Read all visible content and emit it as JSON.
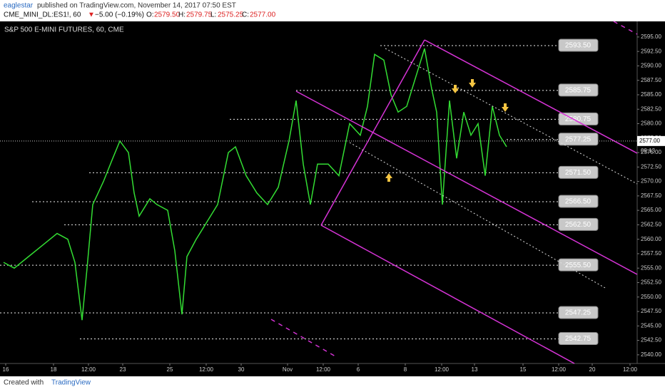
{
  "header": {
    "user": "eaglestar",
    "published": "published on TradingView.com, November 14, 2017 07:50 EST",
    "symbol": "CME_MINI_DL:ES1!, 60",
    "arrow": "▼",
    "change": "−5.00 (−0.19%)",
    "o_label": "O:",
    "open": "2579.50",
    "h_label": "H:",
    "high": "2579.75",
    "l_label": "L:",
    "low": "2575.25",
    "c_label": "C:",
    "close": "2577.00"
  },
  "chart_data": {
    "type": "line",
    "title": "S&P 500 E-MINI FUTURES, 60, CME",
    "series": [
      {
        "name": "ES1!",
        "color": "#33dd33",
        "x": [
          5,
          20,
          40,
          60,
          80,
          95,
          105,
          115,
          122,
          130,
          145,
          158,
          168,
          180,
          188,
          195,
          210,
          220,
          235,
          245,
          255,
          262,
          275,
          290,
          305,
          320,
          330,
          345,
          360,
          375,
          390,
          405,
          415,
          425,
          435,
          445,
          460,
          475,
          490,
          505,
          515,
          525,
          538,
          548,
          558,
          570,
          585,
          595,
          605,
          612,
          620,
          630,
          640,
          650,
          660,
          670,
          680,
          690,
          700,
          710
        ],
        "values": [
          2556,
          2555,
          2557,
          2559,
          2561,
          2560,
          2556,
          2546,
          2555,
          2566,
          2570,
          2574,
          2577,
          2575,
          2568,
          2564,
          2567,
          2566,
          2565,
          2558,
          2547,
          2557,
          2560,
          2563,
          2566,
          2575,
          2576,
          2571,
          2568,
          2566,
          2569,
          2577,
          2584,
          2573,
          2566,
          2573,
          2573,
          2571,
          2580,
          2578,
          2583,
          2592,
          2591,
          2585,
          2582,
          2583,
          2589,
          2593,
          2586,
          2582,
          2566,
          2584,
          2574,
          2582,
          2578,
          2580,
          2571,
          2583,
          2578,
          2576
        ]
      }
    ],
    "levels": [
      {
        "value": 2593.5,
        "label": "2593.50",
        "start_x": 533
      },
      {
        "value": 2585.75,
        "label": "2585.75",
        "start_x": 415
      },
      {
        "value": 2580.75,
        "label": "2580.75",
        "start_x": 322
      },
      {
        "value": 2577.25,
        "label": "2577.25",
        "start_x": 710
      },
      {
        "value": 2571.5,
        "label": "2571.50",
        "start_x": 125
      },
      {
        "value": 2566.5,
        "label": "2566.50",
        "start_x": 45
      },
      {
        "value": 2562.5,
        "label": "2562.50",
        "start_x": 90
      },
      {
        "value": 2555.5,
        "label": "2555.50",
        "start_x": 0
      },
      {
        "value": 2547.25,
        "label": "2547.25",
        "start_x": 0
      },
      {
        "value": 2542.75,
        "label": "2542.75",
        "start_x": 112
      }
    ],
    "last_price": {
      "value": 2577,
      "label": "2577.00"
    },
    "countdown": "09:13",
    "xlim": [
      0,
      893
    ],
    "ylim": [
      2538.5,
      2597.7
    ],
    "xticks": [
      {
        "value": 8,
        "label": "16"
      },
      {
        "value": 75,
        "label": "18"
      },
      {
        "value": 124,
        "label": "12:00"
      },
      {
        "value": 172,
        "label": "23"
      },
      {
        "value": 238,
        "label": "25"
      },
      {
        "value": 289,
        "label": "12:00"
      },
      {
        "value": 338,
        "label": "30"
      },
      {
        "value": 403,
        "label": "Nov"
      },
      {
        "value": 453,
        "label": "12:00"
      },
      {
        "value": 502,
        "label": "6"
      },
      {
        "value": 568,
        "label": "8"
      },
      {
        "value": 619,
        "label": "12:00"
      },
      {
        "value": 665,
        "label": "13"
      },
      {
        "value": 733,
        "label": "15"
      },
      {
        "value": 783,
        "label": "12:00"
      },
      {
        "value": 830,
        "label": "20"
      },
      {
        "value": 883,
        "label": "12:00"
      }
    ],
    "yticks": [
      {
        "value": 2540,
        "label": "2540.00"
      },
      {
        "value": 2542.5,
        "label": "2542.50"
      },
      {
        "value": 2545,
        "label": "2545.00"
      },
      {
        "value": 2547.5,
        "label": "2547.50"
      },
      {
        "value": 2550,
        "label": "2550.00"
      },
      {
        "value": 2552.5,
        "label": "2552.50"
      },
      {
        "value": 2555,
        "label": "2555.00"
      },
      {
        "value": 2557.5,
        "label": "2557.50"
      },
      {
        "value": 2560,
        "label": "2560.00"
      },
      {
        "value": 2562.5,
        "label": "2562.50"
      },
      {
        "value": 2565,
        "label": "2565.00"
      },
      {
        "value": 2567.5,
        "label": "2567.50"
      },
      {
        "value": 2570,
        "label": "2570.00"
      },
      {
        "value": 2572.5,
        "label": "2572.50"
      },
      {
        "value": 2575,
        "label": "2575.00"
      },
      {
        "value": 2577.5,
        "label": "2577.50"
      },
      {
        "value": 2580,
        "label": "2580.00"
      },
      {
        "value": 2582.5,
        "label": "2582.50"
      },
      {
        "value": 2585,
        "label": "2585.00"
      },
      {
        "value": 2587.5,
        "label": "2587.50"
      },
      {
        "value": 2590,
        "label": "2590.00"
      },
      {
        "value": 2592.5,
        "label": "2592.50"
      },
      {
        "value": 2595,
        "label": "2595.00"
      }
    ]
  },
  "footer": {
    "created": "Created with",
    "brand": "TradingView"
  }
}
